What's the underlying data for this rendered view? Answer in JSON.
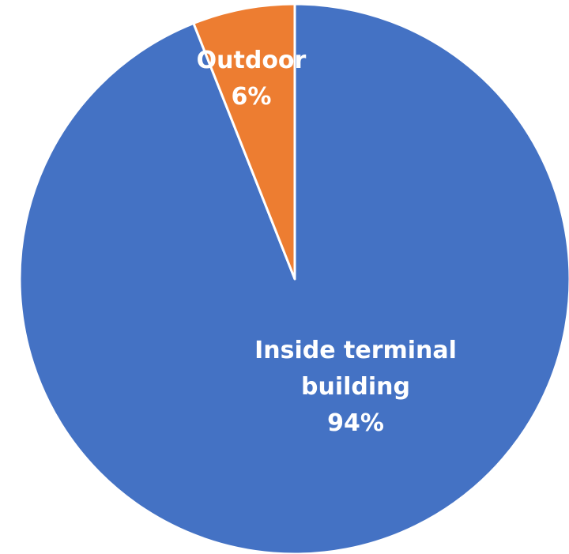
{
  "chart_data": {
    "type": "pie",
    "categories": [
      "Inside terminal building",
      "Outdoor"
    ],
    "values": [
      94,
      6
    ],
    "value_labels": [
      "94%",
      "6%"
    ],
    "colors": [
      "#4472c4",
      "#ed7d31"
    ]
  }
}
